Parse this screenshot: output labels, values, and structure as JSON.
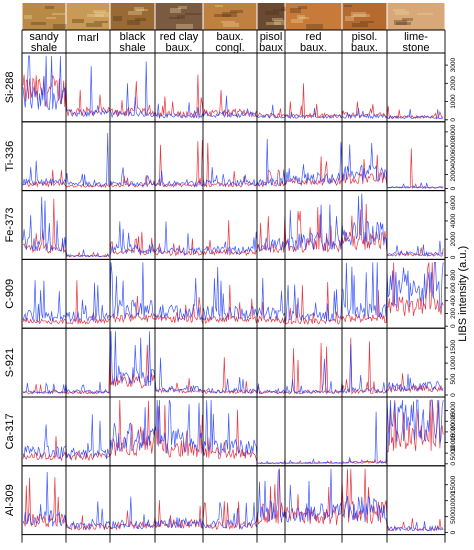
{
  "chart_data": {
    "type": "line",
    "ylabel": "LIBS intensity (a.u.)",
    "rock_units": [
      "sandy shale",
      "marl",
      "black shale",
      "red clay baux.",
      "baux. congl.",
      "pisol baux",
      "red baux.",
      "pisol. baux.",
      "lime-stone"
    ],
    "unit_labels": [
      [
        "sandy",
        "shale"
      ],
      [
        "marl"
      ],
      [
        "black",
        "shale"
      ],
      [
        "red clay",
        "baux."
      ],
      [
        "baux.",
        "congl."
      ],
      [
        "pisol",
        "baux"
      ],
      [
        "red",
        "baux."
      ],
      [
        "pisol.",
        "baux."
      ],
      [
        "lime-",
        "stone"
      ]
    ],
    "colors": {
      "series_a": "#1f3cff",
      "series_b": "#e8202a",
      "grid": "#000000",
      "photo": [
        "#b98a45",
        "#c99a55",
        "#9a6a35",
        "#7a5a40",
        "#c08040",
        "#6a4a30",
        "#c87a3a",
        "#b56a30",
        "#d8a878"
      ]
    },
    "panels": [
      {
        "element": "Si-288",
        "ylim": [
          0,
          3500
        ],
        "ticks": [
          "0",
          "1000",
          "2000",
          "3000"
        ],
        "levels": [
          1900,
          550,
          500,
          350,
          450,
          300,
          280,
          300,
          200
        ],
        "peak": 3300,
        "blue_scale": 0.8,
        "red_scale": 1.05
      },
      {
        "element": "Ti-336",
        "ylim": [
          0,
          9000
        ],
        "ticks": [
          "0",
          "2000",
          "4000",
          "6000",
          "8000"
        ],
        "levels": [
          900,
          600,
          700,
          700,
          800,
          900,
          1500,
          2200,
          200
        ],
        "peak": 8000,
        "blue_scale": 1.25,
        "red_scale": 0.85
      },
      {
        "element": "Fe-373",
        "ylim": [
          0,
          7000
        ],
        "ticks": [
          "0",
          "2000",
          "4000",
          "6000"
        ],
        "levels": [
          1500,
          200,
          900,
          700,
          800,
          1500,
          1800,
          2800,
          400
        ],
        "peak": 6500,
        "blue_scale": 1.25,
        "red_scale": 0.85
      },
      {
        "element": "C-909",
        "ylim": [
          0,
          1000
        ],
        "ticks": [
          "0",
          "200",
          "400",
          "600",
          "800"
        ],
        "levels": [
          180,
          170,
          300,
          250,
          230,
          230,
          170,
          280,
          680
        ],
        "peak": 900,
        "blue_scale": 1.1,
        "red_scale": 0.55
      },
      {
        "element": "S-921",
        "ylim": [
          0,
          2000
        ],
        "ticks": [
          "0",
          "500",
          "1000",
          "1500"
        ],
        "levels": [
          110,
          120,
          650,
          210,
          150,
          110,
          120,
          160,
          300
        ],
        "peak": 1800,
        "blue_scale": 1.15,
        "red_scale": 0.85
      },
      {
        "element": "Ca-317",
        "ylim": [
          0,
          30000
        ],
        "ticks": [
          "0",
          "5000",
          "10000",
          "15000",
          "20000",
          "25000"
        ],
        "levels": [
          6000,
          5500,
          14000,
          12000,
          8000,
          400,
          500,
          800,
          21000
        ],
        "peak": 28000,
        "blue_scale": 1.15,
        "red_scale": 0.75
      },
      {
        "element": "Al-309",
        "ylim": [
          0,
          20000
        ],
        "ticks": [
          "0",
          "5000",
          "10000",
          "15000"
        ],
        "levels": [
          5000,
          2500,
          3000,
          3500,
          3000,
          8000,
          7000,
          8500,
          1500
        ],
        "peak": 19000,
        "blue_scale": 1.1,
        "red_scale": 0.95
      }
    ]
  }
}
